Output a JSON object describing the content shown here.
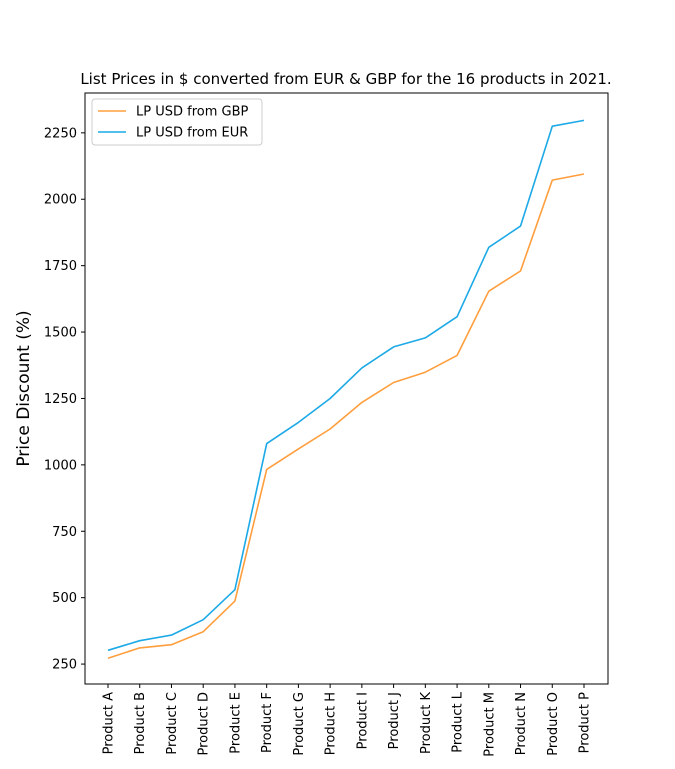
{
  "chart_data": {
    "type": "line",
    "title": "List Prices in $ converted from EUR & GBP for the 16 products in 2021.",
    "xlabel": "",
    "ylabel": "Price Discount (%)",
    "categories": [
      "Product A",
      "Product B",
      "Product C",
      "Product D",
      "Product E",
      "Product F",
      "Product G",
      "Product H",
      "Product I",
      "Product J",
      "Product K",
      "Product L",
      "Product M",
      "Product N",
      "Product O",
      "Product P"
    ],
    "series": [
      {
        "name": "LP USD from GBP",
        "color": "#ff9e3d",
        "values": [
          272,
          311,
          323,
          372,
          487,
          983,
          1060,
          1135,
          1235,
          1310,
          1349,
          1412,
          1654,
          1730,
          2072,
          2095
        ]
      },
      {
        "name": "LP USD from EUR",
        "color": "#1ca9e6",
        "values": [
          302,
          338,
          359,
          417,
          530,
          1080,
          1160,
          1250,
          1365,
          1444,
          1478,
          1558,
          1819,
          1899,
          2275,
          2297
        ]
      }
    ],
    "ylim": [
      175,
      2400
    ],
    "yticks": [
      250,
      500,
      750,
      1000,
      1250,
      1500,
      1750,
      2000,
      2250
    ],
    "grid": false,
    "legend": "top-left"
  }
}
